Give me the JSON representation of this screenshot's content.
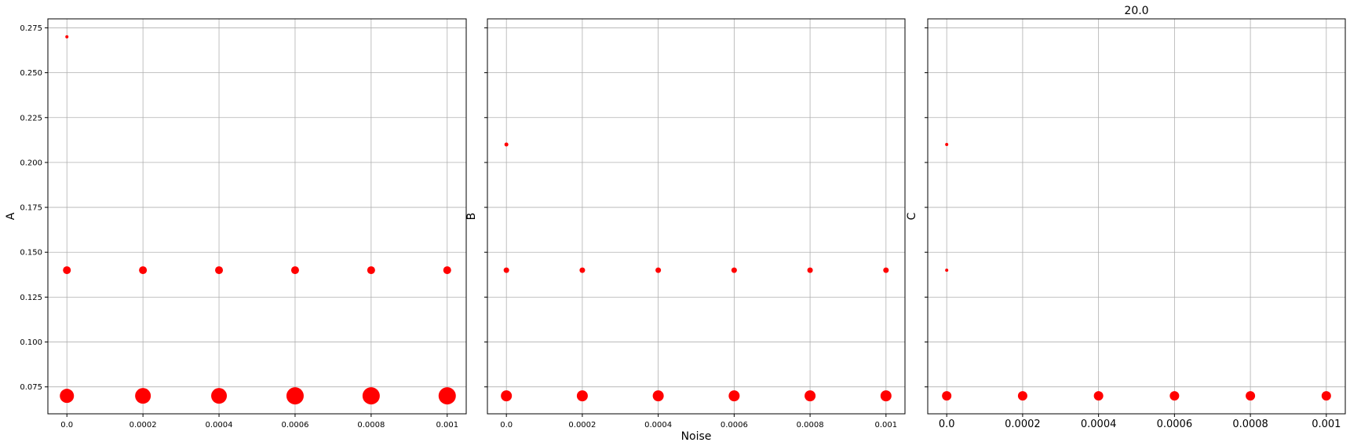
{
  "chart_data": [
    {
      "type": "scatter",
      "panel": "A",
      "title": "",
      "xlabel": "",
      "ylabel": "A",
      "xlim": [
        -5e-05,
        0.00105
      ],
      "ylim": [
        0.06,
        0.28
      ],
      "xticks": [
        0,
        0.0002,
        0.0004,
        0.0006,
        0.0008,
        0.001
      ],
      "xtick_labels": [
        "0.0",
        "0.0002",
        "0.0004",
        "0.0006",
        "0.0008",
        "0.001"
      ],
      "yticks": [
        0.075,
        0.1,
        0.125,
        0.15,
        0.175,
        0.2,
        0.225,
        0.25,
        0.275
      ],
      "ytick_labels": [
        "0.075",
        "0.100",
        "0.125",
        "0.150",
        "0.175",
        "0.200",
        "0.225",
        "0.250",
        "0.275"
      ],
      "grid": true,
      "color": "#ff0000",
      "points": [
        {
          "x": 0,
          "y": 0.27,
          "size": 2
        },
        {
          "x": 0,
          "y": 0.14,
          "size": 5
        },
        {
          "x": 0,
          "y": 0.07,
          "size": 9
        },
        {
          "x": 0.0002,
          "y": 0.14,
          "size": 5
        },
        {
          "x": 0.0002,
          "y": 0.07,
          "size": 10
        },
        {
          "x": 0.0004,
          "y": 0.14,
          "size": 5
        },
        {
          "x": 0.0004,
          "y": 0.07,
          "size": 10
        },
        {
          "x": 0.0006,
          "y": 0.14,
          "size": 5
        },
        {
          "x": 0.0006,
          "y": 0.07,
          "size": 11
        },
        {
          "x": 0.0008,
          "y": 0.14,
          "size": 5
        },
        {
          "x": 0.0008,
          "y": 0.07,
          "size": 11
        },
        {
          "x": 0.001,
          "y": 0.14,
          "size": 5
        },
        {
          "x": 0.001,
          "y": 0.07,
          "size": 11
        }
      ]
    },
    {
      "type": "scatter",
      "panel": "B",
      "title": "",
      "xlabel": "Noise",
      "ylabel": "B",
      "xlim": [
        -5e-05,
        0.00105
      ],
      "ylim": [
        0.06,
        0.28
      ],
      "xticks": [
        0,
        0.0002,
        0.0004,
        0.0006,
        0.0008,
        0.001
      ],
      "xtick_labels": [
        "0.0",
        "0.0002",
        "0.0004",
        "0.0006",
        "0.0008",
        "0.001"
      ],
      "yticks": [
        0.075,
        0.1,
        0.125,
        0.15,
        0.175,
        0.2,
        0.225,
        0.25,
        0.275
      ],
      "ytick_labels": [],
      "grid": true,
      "color": "#ff0000",
      "points": [
        {
          "x": 0,
          "y": 0.21,
          "size": 2.5
        },
        {
          "x": 0,
          "y": 0.14,
          "size": 3.5
        },
        {
          "x": 0,
          "y": 0.07,
          "size": 7
        },
        {
          "x": 0.0002,
          "y": 0.14,
          "size": 3.5
        },
        {
          "x": 0.0002,
          "y": 0.07,
          "size": 7
        },
        {
          "x": 0.0004,
          "y": 0.14,
          "size": 3.5
        },
        {
          "x": 0.0004,
          "y": 0.07,
          "size": 7
        },
        {
          "x": 0.0006,
          "y": 0.14,
          "size": 3.5
        },
        {
          "x": 0.0006,
          "y": 0.07,
          "size": 7
        },
        {
          "x": 0.0008,
          "y": 0.14,
          "size": 3.5
        },
        {
          "x": 0.0008,
          "y": 0.07,
          "size": 7
        },
        {
          "x": 0.001,
          "y": 0.14,
          "size": 3.5
        },
        {
          "x": 0.001,
          "y": 0.07,
          "size": 7
        }
      ]
    },
    {
      "type": "scatter",
      "panel": "C",
      "title": "20.0",
      "xlabel": "",
      "ylabel": "C",
      "xlim": [
        -5e-05,
        0.00105
      ],
      "ylim": [
        0.06,
        0.28
      ],
      "xticks": [
        0,
        0.0002,
        0.0004,
        0.0006,
        0.0008,
        0.001
      ],
      "xtick_labels": [
        "0.0",
        "0.0002",
        "0.0004",
        "0.0006",
        "0.0008",
        "0.001"
      ],
      "yticks": [
        0.075,
        0.1,
        0.125,
        0.15,
        0.175,
        0.2,
        0.225,
        0.25,
        0.275
      ],
      "ytick_labels": [],
      "grid": true,
      "color": "#ff0000",
      "points": [
        {
          "x": 0,
          "y": 0.21,
          "size": 2
        },
        {
          "x": 0,
          "y": 0.14,
          "size": 2
        },
        {
          "x": 0,
          "y": 0.07,
          "size": 6
        },
        {
          "x": 0.0002,
          "y": 0.07,
          "size": 6
        },
        {
          "x": 0.0004,
          "y": 0.07,
          "size": 6
        },
        {
          "x": 0.0006,
          "y": 0.07,
          "size": 6
        },
        {
          "x": 0.0008,
          "y": 0.07,
          "size": 6
        },
        {
          "x": 0.001,
          "y": 0.07,
          "size": 6
        }
      ]
    }
  ]
}
